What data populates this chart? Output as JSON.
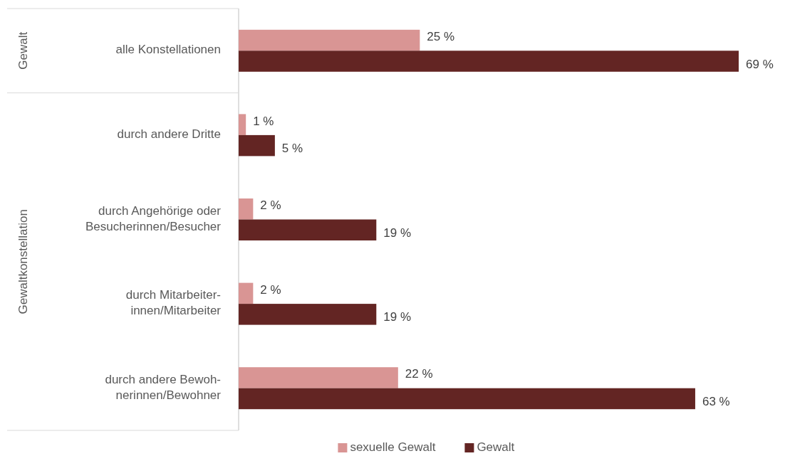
{
  "chart_data": {
    "type": "bar",
    "orientation": "horizontal",
    "categories": [
      "alle Konstellationen",
      "durch andere Dritte",
      "durch Angehörige oder\nBesucherinnen/Besucher",
      "durch Mitarbeiter-\ninnen/Mitarbeiter",
      "durch andere Bewoh-\nnerinnen/Bewohner"
    ],
    "series": [
      {
        "name": "sexuelle Gewalt",
        "color": "#d99594",
        "values": [
          25,
          1,
          2,
          2,
          22
        ],
        "value_labels": [
          "25 %",
          "1 %",
          "2 %",
          "2 %",
          "22 %"
        ]
      },
      {
        "name": "Gewalt",
        "color": "#632523",
        "values": [
          69,
          5,
          19,
          19,
          63
        ],
        "value_labels": [
          "69 %",
          "5 %",
          "19 %",
          "19 %",
          "63 %"
        ]
      }
    ],
    "annotations": [
      "Gewalt",
      "Gewaltkonstellation"
    ],
    "legend": "bottom"
  }
}
